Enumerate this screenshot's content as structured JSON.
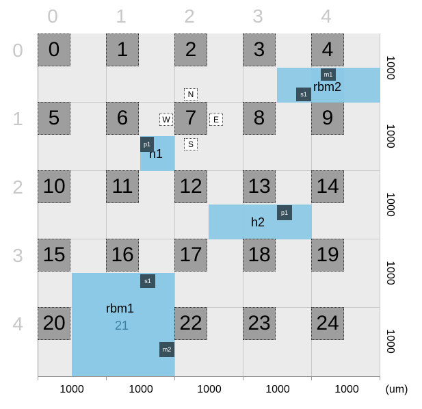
{
  "columns": [
    "0",
    "1",
    "2",
    "3",
    "4"
  ],
  "rows": [
    "0",
    "1",
    "2",
    "3",
    "4"
  ],
  "tiles": [
    "0",
    "1",
    "2",
    "3",
    "4",
    "5",
    "6",
    "7",
    "8",
    "9",
    "10",
    "11",
    "12",
    "13",
    "14",
    "15",
    "16",
    "17",
    "18",
    "19",
    "20",
    "21",
    "22",
    "23",
    "24"
  ],
  "compass": {
    "n": "N",
    "s": "S",
    "e": "E",
    "w": "W"
  },
  "macros": {
    "rbm2": {
      "label": "rbm2",
      "pin_m": "m1",
      "pin_s": "s1"
    },
    "h1": {
      "label": "h1",
      "pin_p": "p1"
    },
    "h2": {
      "label": "h2",
      "pin_p": "p1"
    },
    "rbm1": {
      "label": "rbm1",
      "sub": "21",
      "pin_s": "s1",
      "pin_m": "m2"
    }
  },
  "row_dims": [
    "1000",
    "1000",
    "1000",
    "1000",
    "1000"
  ],
  "col_dims": [
    "1000",
    "1000",
    "1000",
    "1000",
    "1000"
  ],
  "unit": "(um)",
  "colors": {
    "grid": "#ebebeb",
    "tile": "#9e9e9e",
    "macro": "#8cc9e6",
    "pin": "#38505c",
    "axis_numbers": "#c8c8c8"
  }
}
